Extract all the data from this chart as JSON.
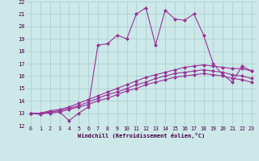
{
  "xlabel": "Windchill (Refroidissement éolien,°C)",
  "bg_color": "#cce8e8",
  "grid_color": "#aacccc",
  "line_color": "#993399",
  "xlim": [
    -0.5,
    23.5
  ],
  "ylim": [
    12,
    22
  ],
  "xticks": [
    0,
    1,
    2,
    3,
    4,
    5,
    6,
    7,
    8,
    9,
    10,
    11,
    12,
    13,
    14,
    15,
    16,
    17,
    18,
    19,
    20,
    21,
    22,
    23
  ],
  "yticks": [
    12,
    13,
    14,
    15,
    16,
    17,
    18,
    19,
    20,
    21,
    22
  ],
  "series": [
    [
      13.0,
      12.9,
      13.1,
      13.1,
      12.4,
      13.0,
      13.5,
      18.5,
      18.6,
      19.3,
      19.0,
      21.0,
      21.5,
      18.5,
      21.3,
      20.6,
      20.5,
      21.0,
      19.3,
      17.0,
      16.1,
      15.5,
      16.8,
      16.4
    ],
    [
      13.0,
      13.0,
      13.2,
      13.3,
      13.5,
      13.8,
      14.1,
      14.4,
      14.7,
      15.0,
      15.3,
      15.6,
      15.9,
      16.1,
      16.3,
      16.5,
      16.7,
      16.8,
      16.9,
      16.8,
      16.7,
      16.6,
      16.6,
      16.4
    ],
    [
      13.0,
      13.0,
      13.1,
      13.2,
      13.4,
      13.6,
      13.9,
      14.2,
      14.5,
      14.7,
      15.0,
      15.3,
      15.5,
      15.8,
      16.0,
      16.2,
      16.3,
      16.4,
      16.5,
      16.4,
      16.3,
      16.1,
      16.0,
      15.8
    ],
    [
      13.0,
      13.0,
      13.0,
      13.1,
      13.3,
      13.5,
      13.7,
      14.0,
      14.2,
      14.5,
      14.8,
      15.0,
      15.3,
      15.5,
      15.7,
      15.9,
      16.0,
      16.1,
      16.2,
      16.1,
      16.0,
      15.8,
      15.7,
      15.5
    ]
  ]
}
